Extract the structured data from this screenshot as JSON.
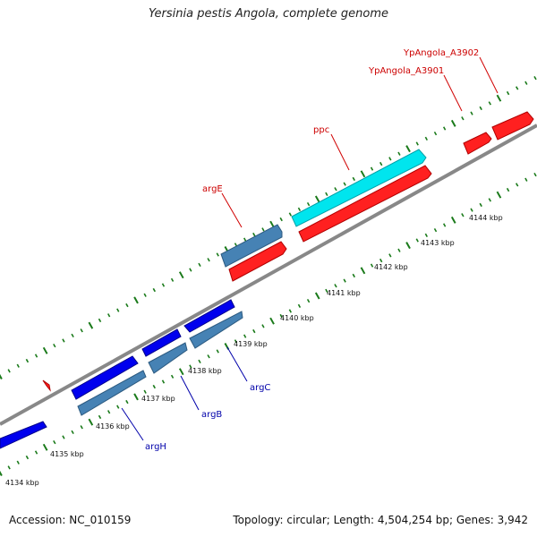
{
  "title": "Yersinia pestis Angola, complete genome",
  "footer": {
    "accession": "Accession: NC_010159",
    "summary": "Topology: circular; Length: 4,504,254 bp; Genes: 3,942"
  },
  "colors": {
    "background": "#ffffff",
    "backbone": "#888888",
    "tick": "#1a7a1a",
    "forward_cds": "#ff0000",
    "reverse_cds": "#0000ee",
    "highlight_cds": "#00e5ee",
    "steelblue_cds": "#4682b4",
    "label_forward": "#cc0000",
    "label_reverse": "#0000aa"
  },
  "scale": {
    "kbp_labels": [
      "4134 kbp",
      "4135 kbp",
      "4136 kbp",
      "4137 kbp",
      "4138 kbp",
      "4139 kbp",
      "4140 kbp",
      "4141 kbp",
      "4142 kbp",
      "4143 kbp",
      "4144 kbp"
    ]
  },
  "genes": {
    "labeled": [
      {
        "name": "YpAngola_A3902",
        "strand": "forward"
      },
      {
        "name": "YpAngola_A3901",
        "strand": "forward"
      },
      {
        "name": "ppc",
        "strand": "forward"
      },
      {
        "name": "argE",
        "strand": "forward"
      },
      {
        "name": "argC",
        "strand": "reverse"
      },
      {
        "name": "argB",
        "strand": "reverse"
      },
      {
        "name": "argH",
        "strand": "reverse"
      }
    ]
  }
}
